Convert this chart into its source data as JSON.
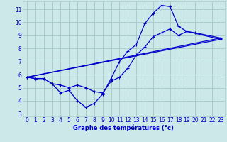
{
  "xlabel": "Graphe des températures (°c)",
  "bg_color": "#cce8e8",
  "grid_color": "#aacccc",
  "line_color": "#0000cc",
  "xlim": [
    -0.5,
    23.5
  ],
  "ylim": [
    2.8,
    11.6
  ],
  "yticks": [
    3,
    4,
    5,
    6,
    7,
    8,
    9,
    10,
    11
  ],
  "xticks": [
    0,
    1,
    2,
    3,
    4,
    5,
    6,
    7,
    8,
    9,
    10,
    11,
    12,
    13,
    14,
    15,
    16,
    17,
    18,
    19,
    20,
    21,
    22,
    23
  ],
  "line1_x": [
    0,
    1,
    2,
    3,
    4,
    5,
    6,
    7,
    8,
    9,
    10,
    11,
    12,
    13,
    14,
    15,
    16,
    17,
    18,
    19,
    20,
    23
  ],
  "line1_y": [
    5.8,
    5.7,
    5.7,
    5.3,
    4.6,
    4.8,
    4.0,
    3.5,
    3.8,
    4.5,
    5.7,
    7.0,
    7.8,
    8.3,
    9.9,
    10.7,
    11.3,
    11.2,
    9.7,
    9.3,
    9.2,
    8.8
  ],
  "line2_x": [
    0,
    1,
    2,
    3,
    4,
    5,
    6,
    7,
    8,
    9,
    10,
    11,
    12,
    13,
    14,
    15,
    16,
    17,
    18,
    19,
    23
  ],
  "line2_y": [
    5.8,
    5.7,
    5.7,
    5.3,
    5.2,
    5.0,
    5.2,
    5.0,
    4.7,
    4.6,
    5.5,
    5.8,
    6.5,
    7.5,
    8.1,
    8.9,
    9.2,
    9.5,
    9.0,
    9.3,
    8.7
  ],
  "line3_x": [
    0,
    23
  ],
  "line3_y": [
    5.8,
    8.8
  ],
  "line4_x": [
    0,
    23
  ],
  "line4_y": [
    5.8,
    8.7
  ]
}
